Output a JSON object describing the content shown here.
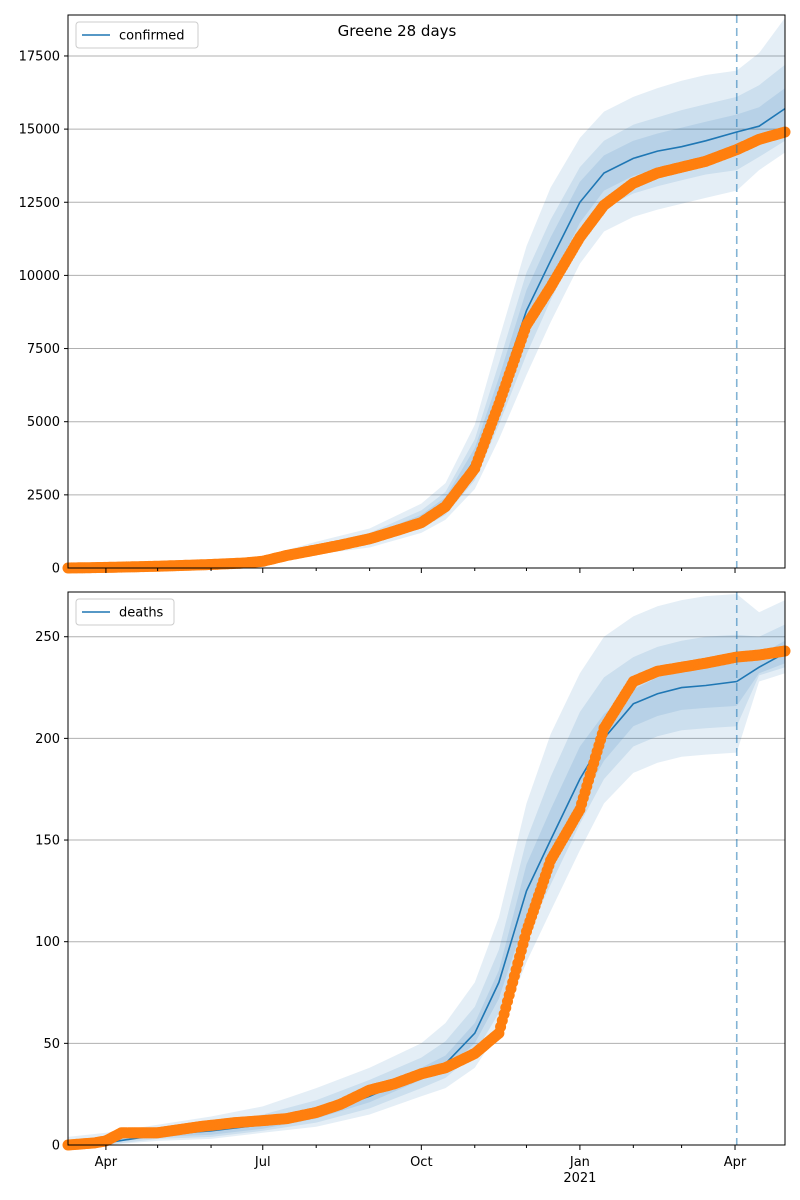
{
  "figure": {
    "title": "Greene 28 days",
    "colors": {
      "band": "#1f77b4",
      "model_line": "#1f77b4",
      "observed": "#ff7f0e",
      "grid": "#b0b0b0",
      "forecast_line": "#1f77b4"
    },
    "x_ticks": [
      "Apr",
      "Jul",
      "Oct",
      "Jan",
      "Apr"
    ],
    "x_year_label": "2021",
    "forecast_start": "2021-04-02"
  },
  "chart_data": [
    {
      "type": "line",
      "legend": "confirmed",
      "legend_position": "top-left",
      "grid": "horizontal",
      "xlim": [
        "2020-03-10",
        "2021-04-30"
      ],
      "ylim": [
        0,
        18900
      ],
      "y_ticks": [
        "0",
        "2500",
        "5000",
        "7500",
        "10000",
        "12500",
        "15000",
        "17500"
      ],
      "model": {
        "dates": [
          "2020-03-10",
          "2020-04-01",
          "2020-05-01",
          "2020-06-01",
          "2020-07-01",
          "2020-08-01",
          "2020-09-01",
          "2020-10-01",
          "2020-10-15",
          "2020-11-01",
          "2020-11-15",
          "2020-12-01",
          "2020-12-15",
          "2021-01-01",
          "2021-01-15",
          "2021-02-01",
          "2021-02-15",
          "2021-03-01",
          "2021-03-15",
          "2021-04-02",
          "2021-04-15",
          "2021-04-30"
        ],
        "values": [
          0,
          30,
          80,
          150,
          250,
          650,
          1000,
          1650,
          2200,
          3700,
          6000,
          8800,
          10500,
          12500,
          13500,
          14000,
          14250,
          14400,
          14600,
          14900,
          15100,
          15700
        ]
      },
      "bands": [
        {
          "lower": [
            0,
            0,
            40,
            90,
            150,
            460,
            700,
            1200,
            1650,
            2700,
            4400,
            6600,
            8400,
            10400,
            11500,
            12000,
            12250,
            12450,
            12650,
            12900,
            13600,
            14200
          ],
          "upper": [
            60,
            80,
            140,
            240,
            390,
            900,
            1350,
            2200,
            2900,
            4900,
            7800,
            11000,
            13000,
            14700,
            15600,
            16100,
            16400,
            16650,
            16850,
            17000,
            17600,
            18800
          ]
        },
        {
          "lower": [
            0,
            10,
            55,
            110,
            185,
            530,
            800,
            1350,
            1820,
            3000,
            4900,
            7300,
            9150,
            11200,
            12300,
            12800,
            13050,
            13250,
            13450,
            13600,
            14050,
            14600
          ],
          "upper": [
            40,
            55,
            115,
            205,
            330,
            800,
            1200,
            1970,
            2600,
            4400,
            7000,
            10100,
            11900,
            13700,
            14600,
            15150,
            15400,
            15650,
            15850,
            16100,
            16500,
            17200
          ]
        },
        {
          "lower": [
            0,
            20,
            65,
            125,
            210,
            580,
            880,
            1480,
            1980,
            3300,
            5400,
            7900,
            9750,
            11800,
            12900,
            13400,
            13650,
            13850,
            14050,
            14200,
            14500,
            15000
          ],
          "upper": [
            20,
            40,
            95,
            175,
            290,
            720,
            1100,
            1820,
            2420,
            4100,
            6500,
            9500,
            11300,
            13200,
            14100,
            14600,
            14850,
            15050,
            15250,
            15500,
            15750,
            16400
          ]
        }
      ],
      "observed": {
        "dates": [
          "2020-03-10",
          "2020-04-01",
          "2020-05-01",
          "2020-06-01",
          "2020-06-20",
          "2020-07-01",
          "2020-07-15",
          "2020-08-01",
          "2020-08-15",
          "2020-09-01",
          "2020-09-15",
          "2020-10-01",
          "2020-10-15",
          "2020-11-01",
          "2020-11-15",
          "2020-12-01",
          "2020-12-15",
          "2021-01-01",
          "2021-01-15",
          "2021-02-01",
          "2021-02-15",
          "2021-03-01",
          "2021-03-15",
          "2021-04-02",
          "2021-04-15",
          "2021-04-30"
        ],
        "values": [
          0,
          20,
          60,
          120,
          170,
          230,
          430,
          620,
          780,
          1000,
          1250,
          1550,
          2100,
          3400,
          5600,
          8300,
          9600,
          11300,
          12400,
          13150,
          13500,
          13700,
          13900,
          14300,
          14650,
          14900
        ]
      }
    },
    {
      "type": "line",
      "legend": "deaths",
      "legend_position": "top-left",
      "grid": "horizontal",
      "xlim": [
        "2020-03-10",
        "2021-04-30"
      ],
      "ylim": [
        0,
        272
      ],
      "y_ticks": [
        "0",
        "50",
        "100",
        "150",
        "200",
        "250"
      ],
      "model": {
        "dates": [
          "2020-03-10",
          "2020-04-01",
          "2020-05-01",
          "2020-06-01",
          "2020-07-01",
          "2020-08-01",
          "2020-09-01",
          "2020-10-01",
          "2020-10-15",
          "2020-11-01",
          "2020-11-15",
          "2020-12-01",
          "2020-12-15",
          "2021-01-01",
          "2021-01-15",
          "2021-02-01",
          "2021-02-15",
          "2021-03-01",
          "2021-03-15",
          "2021-04-02",
          "2021-04-15",
          "2021-04-30"
        ],
        "values": [
          0,
          1,
          5,
          7,
          10,
          15,
          24,
          35,
          40,
          55,
          80,
          125,
          150,
          180,
          200,
          217,
          222,
          225,
          226,
          228,
          235,
          242
        ]
      },
      "bands": [
        {
          "lower": [
            0,
            0,
            2,
            3,
            6,
            9,
            15,
            24,
            28,
            38,
            56,
            90,
            115,
            145,
            168,
            183,
            188,
            191,
            192,
            193,
            228,
            232
          ],
          "upper": [
            4,
            6,
            10,
            14,
            19,
            28,
            38,
            50,
            60,
            80,
            112,
            168,
            202,
            232,
            250,
            260,
            265,
            268,
            270,
            271,
            262,
            268
          ]
        },
        {
          "lower": [
            0,
            0,
            3,
            4,
            7,
            11,
            18,
            28,
            33,
            45,
            65,
            103,
            128,
            158,
            180,
            196,
            201,
            204,
            205,
            206,
            231,
            235
          ],
          "upper": [
            2,
            4,
            8,
            11,
            15,
            22,
            32,
            43,
            51,
            68,
            96,
            150,
            181,
            213,
            230,
            240,
            245,
            248,
            250,
            251,
            250,
            256
          ]
        },
        {
          "lower": [
            0,
            1,
            4,
            5,
            8,
            13,
            21,
            32,
            37,
            50,
            72,
            113,
            139,
            168,
            189,
            206,
            211,
            214,
            215,
            216,
            232,
            237
          ],
          "upper": [
            1,
            2,
            6,
            9,
            12,
            18,
            27,
            38,
            44,
            60,
            86,
            138,
            165,
            196,
            212,
            224,
            230,
            233,
            235,
            237,
            241,
            248
          ]
        }
      ],
      "observed": {
        "dates": [
          "2020-03-10",
          "2020-03-25",
          "2020-04-01",
          "2020-04-10",
          "2020-05-01",
          "2020-05-25",
          "2020-06-15",
          "2020-07-01",
          "2020-07-15",
          "2020-08-01",
          "2020-08-15",
          "2020-09-01",
          "2020-09-15",
          "2020-10-01",
          "2020-10-15",
          "2020-11-01",
          "2020-11-15",
          "2020-12-01",
          "2020-12-15",
          "2021-01-01",
          "2021-01-15",
          "2021-02-01",
          "2021-02-15",
          "2021-03-01",
          "2021-03-15",
          "2021-04-02",
          "2021-04-15",
          "2021-04-30"
        ],
        "values": [
          0,
          1,
          2,
          6,
          6,
          9,
          11,
          12,
          13,
          16,
          20,
          27,
          30,
          35,
          38,
          45,
          55,
          105,
          140,
          165,
          205,
          228,
          233,
          235,
          237,
          240,
          241,
          243
        ]
      }
    }
  ]
}
